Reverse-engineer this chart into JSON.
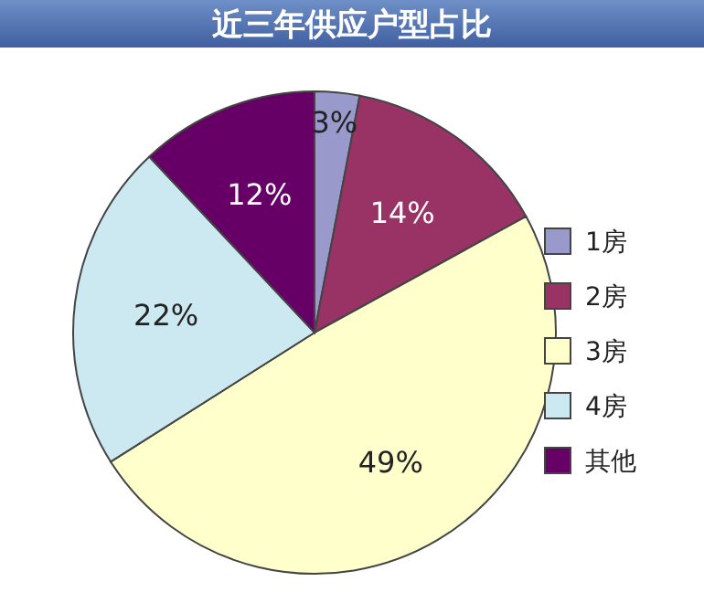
{
  "chart_data": {
    "type": "pie",
    "title": "近三年供应户型占比",
    "categories": [
      "1房",
      "2房",
      "3房",
      "4房",
      "其他"
    ],
    "values": [
      3,
      14,
      49,
      22,
      12
    ],
    "value_labels": [
      "3%",
      "14%",
      "49%",
      "22%",
      "12%"
    ],
    "colors": [
      "#9999cc",
      "#993366",
      "#ffffcc",
      "#cce8f0",
      "#660066"
    ],
    "legend": "right"
  }
}
